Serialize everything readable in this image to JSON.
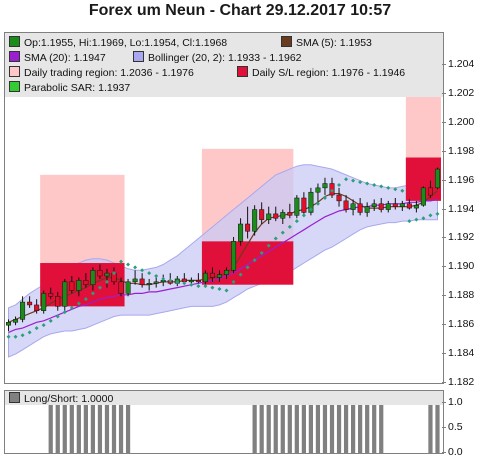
{
  "title": "Forex um Neun - Chart 29.12.2017 10:57",
  "colors": {
    "background": "#ffffff",
    "legend_bg": "#e6e6e6",
    "candle_up": "#1a8c1a",
    "candle_down": "#e0102a",
    "sma5": "#6b3b1d",
    "sma20": "#9b1fd0",
    "bollinger_fill": "#c9c9f5",
    "bollinger_line": "#a8a8ee",
    "trading_region": "#ffc8c8",
    "sl_region": "#e0103a",
    "sar": "#2aa07a",
    "volume_bar": "#808080"
  },
  "legend": [
    {
      "label": "Op:1.1955, Hi:1.1969, Lo:1.1954, Cl:1.1968",
      "color": "#1a8c1a"
    },
    {
      "label": "SMA (5): 1.1953",
      "color": "#6b3b1d"
    },
    {
      "label": "SMA (20): 1.1947",
      "color": "#9b1fd0"
    },
    {
      "label": "Bollinger (20, 2): 1.1933 - 1.1962",
      "color": "#a8a8ee"
    },
    {
      "label": "Daily trading region: 1.2036 - 1.1976",
      "color": "#ffc8c8"
    },
    {
      "label": "Daily S/L region: 1.1976 - 1.1946",
      "color": "#e0103a"
    },
    {
      "label": "Parabolic SAR: 1.1937",
      "color": "#33cc33"
    }
  ],
  "sub_legend": {
    "label": "Long/Short: 1.0000",
    "color": "#808080"
  },
  "chart_data": [
    {
      "type": "candlestick",
      "ylim": [
        1.182,
        1.205
      ],
      "y_ticks": [
        "1.204",
        "1.202",
        "1.200",
        "1.198",
        "1.196",
        "1.194",
        "1.192",
        "1.190",
        "1.188",
        "1.186",
        "1.184",
        "1.182"
      ],
      "candles": [
        {
          "o": 1.186,
          "h": 1.1864,
          "l": 1.1856,
          "c": 1.1862
        },
        {
          "o": 1.1862,
          "h": 1.1866,
          "l": 1.186,
          "c": 1.1864
        },
        {
          "o": 1.1864,
          "h": 1.188,
          "l": 1.1862,
          "c": 1.1876
        },
        {
          "o": 1.1876,
          "h": 1.188,
          "l": 1.1872,
          "c": 1.1874
        },
        {
          "o": 1.1874,
          "h": 1.1878,
          "l": 1.1868,
          "c": 1.187
        },
        {
          "o": 1.187,
          "h": 1.1884,
          "l": 1.1868,
          "c": 1.1882
        },
        {
          "o": 1.1882,
          "h": 1.1886,
          "l": 1.1878,
          "c": 1.188
        },
        {
          "o": 1.188,
          "h": 1.1883,
          "l": 1.187,
          "c": 1.1873
        },
        {
          "o": 1.1873,
          "h": 1.1892,
          "l": 1.187,
          "c": 1.189
        },
        {
          "o": 1.189,
          "h": 1.1894,
          "l": 1.1882,
          "c": 1.1884
        },
        {
          "o": 1.1884,
          "h": 1.1893,
          "l": 1.188,
          "c": 1.1891
        },
        {
          "o": 1.1891,
          "h": 1.1896,
          "l": 1.1886,
          "c": 1.1888
        },
        {
          "o": 1.1888,
          "h": 1.19,
          "l": 1.1884,
          "c": 1.1898
        },
        {
          "o": 1.1898,
          "h": 1.1902,
          "l": 1.1892,
          "c": 1.1894
        },
        {
          "o": 1.1894,
          "h": 1.1899,
          "l": 1.1886,
          "c": 1.1896
        },
        {
          "o": 1.1896,
          "h": 1.19,
          "l": 1.1888,
          "c": 1.189
        },
        {
          "o": 1.189,
          "h": 1.1893,
          "l": 1.188,
          "c": 1.1882
        },
        {
          "o": 1.1882,
          "h": 1.1892,
          "l": 1.188,
          "c": 1.189
        },
        {
          "o": 1.189,
          "h": 1.1898,
          "l": 1.1888,
          "c": 1.1892
        },
        {
          "o": 1.1892,
          "h": 1.1896,
          "l": 1.1886,
          "c": 1.1888
        },
        {
          "o": 1.1888,
          "h": 1.1892,
          "l": 1.1884,
          "c": 1.1889
        },
        {
          "o": 1.1889,
          "h": 1.1893,
          "l": 1.1886,
          "c": 1.189
        },
        {
          "o": 1.189,
          "h": 1.1895,
          "l": 1.1887,
          "c": 1.1891
        },
        {
          "o": 1.1891,
          "h": 1.1896,
          "l": 1.1888,
          "c": 1.1889
        },
        {
          "o": 1.1889,
          "h": 1.1894,
          "l": 1.1887,
          "c": 1.1892
        },
        {
          "o": 1.1892,
          "h": 1.1896,
          "l": 1.1889,
          "c": 1.189
        },
        {
          "o": 1.189,
          "h": 1.1893,
          "l": 1.1887,
          "c": 1.1891
        },
        {
          "o": 1.1891,
          "h": 1.1896,
          "l": 1.1889,
          "c": 1.189
        },
        {
          "o": 1.189,
          "h": 1.1898,
          "l": 1.1888,
          "c": 1.1896
        },
        {
          "o": 1.1896,
          "h": 1.19,
          "l": 1.189,
          "c": 1.1893
        },
        {
          "o": 1.1893,
          "h": 1.1898,
          "l": 1.189,
          "c": 1.1895
        },
        {
          "o": 1.1895,
          "h": 1.19,
          "l": 1.1892,
          "c": 1.1898
        },
        {
          "o": 1.1898,
          "h": 1.1921,
          "l": 1.1896,
          "c": 1.1918
        },
        {
          "o": 1.1918,
          "h": 1.1934,
          "l": 1.1915,
          "c": 1.193
        },
        {
          "o": 1.193,
          "h": 1.1942,
          "l": 1.192,
          "c": 1.1925
        },
        {
          "o": 1.1925,
          "h": 1.1943,
          "l": 1.1922,
          "c": 1.194
        },
        {
          "o": 1.194,
          "h": 1.1945,
          "l": 1.193,
          "c": 1.1933
        },
        {
          "o": 1.1933,
          "h": 1.1942,
          "l": 1.193,
          "c": 1.1937
        },
        {
          "o": 1.1937,
          "h": 1.1942,
          "l": 1.1932,
          "c": 1.1934
        },
        {
          "o": 1.1934,
          "h": 1.194,
          "l": 1.193,
          "c": 1.1938
        },
        {
          "o": 1.1938,
          "h": 1.1944,
          "l": 1.1934,
          "c": 1.1936
        },
        {
          "o": 1.1936,
          "h": 1.195,
          "l": 1.1934,
          "c": 1.1948
        },
        {
          "o": 1.1948,
          "h": 1.1952,
          "l": 1.1935,
          "c": 1.1938
        },
        {
          "o": 1.1938,
          "h": 1.1955,
          "l": 1.1936,
          "c": 1.1952
        },
        {
          "o": 1.1952,
          "h": 1.1958,
          "l": 1.1945,
          "c": 1.1955
        },
        {
          "o": 1.1955,
          "h": 1.1962,
          "l": 1.195,
          "c": 1.1958
        },
        {
          "o": 1.1958,
          "h": 1.1962,
          "l": 1.1948,
          "c": 1.195
        },
        {
          "o": 1.195,
          "h": 1.1955,
          "l": 1.1942,
          "c": 1.1946
        },
        {
          "o": 1.1946,
          "h": 1.195,
          "l": 1.1938,
          "c": 1.194
        },
        {
          "o": 1.194,
          "h": 1.1947,
          "l": 1.1936,
          "c": 1.1944
        },
        {
          "o": 1.1944,
          "h": 1.1948,
          "l": 1.1936,
          "c": 1.1938
        },
        {
          "o": 1.1938,
          "h": 1.1945,
          "l": 1.1935,
          "c": 1.1942
        },
        {
          "o": 1.1942,
          "h": 1.1947,
          "l": 1.1939,
          "c": 1.1944
        },
        {
          "o": 1.1944,
          "h": 1.1948,
          "l": 1.1938,
          "c": 1.194
        },
        {
          "o": 1.194,
          "h": 1.1946,
          "l": 1.1938,
          "c": 1.1944
        },
        {
          "o": 1.1944,
          "h": 1.1948,
          "l": 1.194,
          "c": 1.1942
        },
        {
          "o": 1.1942,
          "h": 1.1946,
          "l": 1.1939,
          "c": 1.1944
        },
        {
          "o": 1.1944,
          "h": 1.1947,
          "l": 1.194,
          "c": 1.1941
        },
        {
          "o": 1.1941,
          "h": 1.1946,
          "l": 1.1938,
          "c": 1.1943
        },
        {
          "o": 1.1943,
          "h": 1.1956,
          "l": 1.1942,
          "c": 1.1955
        },
        {
          "o": 1.1955,
          "h": 1.196,
          "l": 1.1948,
          "c": 1.195
        },
        {
          "o": 1.1955,
          "h": 1.1969,
          "l": 1.1954,
          "c": 1.1968
        }
      ],
      "sma5": [
        1.1862,
        1.1864,
        1.1866,
        1.1868,
        1.187,
        1.1872,
        1.1875,
        1.1878,
        1.188,
        1.1882,
        1.1884,
        1.1886,
        1.1889,
        1.1891,
        1.1893,
        1.1893,
        1.1891,
        1.1889,
        1.1889,
        1.1888,
        1.1888,
        1.1889,
        1.189,
        1.189,
        1.189,
        1.1891,
        1.1891,
        1.1891,
        1.1892,
        1.1893,
        1.1894,
        1.1896,
        1.19,
        1.1908,
        1.1916,
        1.1924,
        1.193,
        1.1934,
        1.1935,
        1.1936,
        1.1937,
        1.1939,
        1.194,
        1.1942,
        1.1945,
        1.1949,
        1.1951,
        1.1951,
        1.1949,
        1.1946,
        1.1943,
        1.1941,
        1.1941,
        1.1941,
        1.1942,
        1.1942,
        1.1942,
        1.1942,
        1.1943,
        1.1945,
        1.1949,
        1.1953
      ],
      "sma20": [
        1.1855,
        1.1857,
        1.1858,
        1.186,
        1.1862,
        1.1863,
        1.1865,
        1.1867,
        1.1869,
        1.1871,
        1.1873,
        1.1874,
        1.1876,
        1.1878,
        1.1879,
        1.188,
        1.1881,
        1.1881,
        1.1882,
        1.1882,
        1.1883,
        1.1883,
        1.1884,
        1.1885,
        1.1886,
        1.1887,
        1.1888,
        1.1889,
        1.189,
        1.1891,
        1.1892,
        1.1894,
        1.1896,
        1.1899,
        1.1902,
        1.1905,
        1.1908,
        1.1911,
        1.1914,
        1.1917,
        1.192,
        1.1923,
        1.1926,
        1.1929,
        1.1932,
        1.1935,
        1.1937,
        1.1939,
        1.194,
        1.1941,
        1.1942,
        1.1942,
        1.1943,
        1.1943,
        1.1944,
        1.1944,
        1.1944,
        1.1945,
        1.1945,
        1.1946,
        1.1946,
        1.1947
      ],
      "bollinger_upper": [
        1.1872,
        1.1874,
        1.1878,
        1.1882,
        1.1885,
        1.1888,
        1.1891,
        1.1894,
        1.1897,
        1.19,
        1.1903,
        1.1905,
        1.1906,
        1.1906,
        1.1905,
        1.1903,
        1.1901,
        1.1899,
        1.1898,
        1.1898,
        1.1899,
        1.19,
        1.1902,
        1.1905,
        1.1908,
        1.1912,
        1.1916,
        1.192,
        1.1924,
        1.1928,
        1.1932,
        1.1936,
        1.194,
        1.1944,
        1.1948,
        1.1952,
        1.1956,
        1.196,
        1.1964,
        1.1966,
        1.1968,
        1.197,
        1.1971,
        1.1971,
        1.197,
        1.1969,
        1.1968,
        1.1966,
        1.1964,
        1.1962,
        1.196,
        1.1958,
        1.1957,
        1.1956,
        1.1955,
        1.1955,
        1.1956,
        1.1957,
        1.1958,
        1.196,
        1.1961,
        1.1962
      ],
      "bollinger_lower": [
        1.1838,
        1.184,
        1.1843,
        1.1846,
        1.1849,
        1.1852,
        1.1854,
        1.1855,
        1.1856,
        1.1856,
        1.1857,
        1.1858,
        1.186,
        1.1862,
        1.1864,
        1.1866,
        1.1867,
        1.1867,
        1.1867,
        1.1867,
        1.1867,
        1.1868,
        1.1869,
        1.187,
        1.1871,
        1.1872,
        1.1873,
        1.1873,
        1.1873,
        1.1873,
        1.1874,
        1.1876,
        1.1879,
        1.1882,
        1.1885,
        1.1887,
        1.1889,
        1.1891,
        1.1892,
        1.1894,
        1.1897,
        1.19,
        1.1903,
        1.1906,
        1.1909,
        1.1912,
        1.1914,
        1.1917,
        1.192,
        1.1923,
        1.1926,
        1.1928,
        1.1929,
        1.193,
        1.1931,
        1.1931,
        1.1932,
        1.1932,
        1.1933,
        1.1933,
        1.1933,
        1.1933
      ],
      "trading_regions": [
        {
          "from": 5,
          "to": 16,
          "high": 1.1964,
          "low": 1.1903
        },
        {
          "from": 28,
          "to": 40,
          "high": 1.1982,
          "low": 1.1918
        },
        {
          "from": 57,
          "to": 61,
          "high": 1.2036,
          "low": 1.1976
        }
      ],
      "sl_regions": [
        {
          "from": 5,
          "to": 16,
          "high": 1.1903,
          "low": 1.1873
        },
        {
          "from": 28,
          "to": 40,
          "high": 1.1918,
          "low": 1.1888
        },
        {
          "from": 57,
          "to": 61,
          "high": 1.1976,
          "low": 1.1946
        }
      ],
      "sar": [
        1.1852,
        1.1852,
        1.1853,
        1.1855,
        1.1858,
        1.186,
        1.1863,
        1.1866,
        1.1869,
        1.1872,
        1.1875,
        1.1878,
        1.1882,
        1.1886,
        1.189,
        1.1896,
        1.1904,
        1.1902,
        1.19,
        1.1898,
        1.1896,
        1.1894,
        1.1892,
        1.1891,
        1.189,
        1.1889,
        1.1888,
        1.1887,
        1.1887,
        1.1886,
        1.1885,
        1.1884,
        1.189,
        1.1895,
        1.19,
        1.1905,
        1.191,
        1.1915,
        1.192,
        1.1924,
        1.1928,
        1.1932,
        1.1936,
        1.194,
        1.1944,
        1.1948,
        1.1953,
        1.1957,
        1.1961,
        1.196,
        1.1959,
        1.1958,
        1.1957,
        1.1956,
        1.1955,
        1.1954,
        1.1953,
        1.1932,
        1.1933,
        1.1934,
        1.1936,
        1.1937
      ]
    },
    {
      "type": "bar",
      "title": "Long/Short: 1.0000",
      "ylim": [
        0,
        1.0
      ],
      "y_ticks": [
        "1.0",
        "0.5",
        "0.0"
      ],
      "values": [
        0,
        0,
        0,
        0,
        0,
        0,
        1,
        1,
        1,
        1,
        1,
        1,
        1,
        1,
        1,
        1,
        1,
        1,
        0,
        0,
        0,
        0,
        0,
        0,
        0,
        0,
        0,
        0,
        0,
        0,
        0,
        0,
        0,
        0,
        0,
        1,
        1,
        1,
        1,
        1,
        1,
        1,
        1,
        1,
        1,
        1,
        1,
        1,
        1,
        1,
        1,
        1,
        1,
        1,
        0,
        0,
        0,
        0,
        0,
        0,
        1,
        1
      ]
    }
  ]
}
